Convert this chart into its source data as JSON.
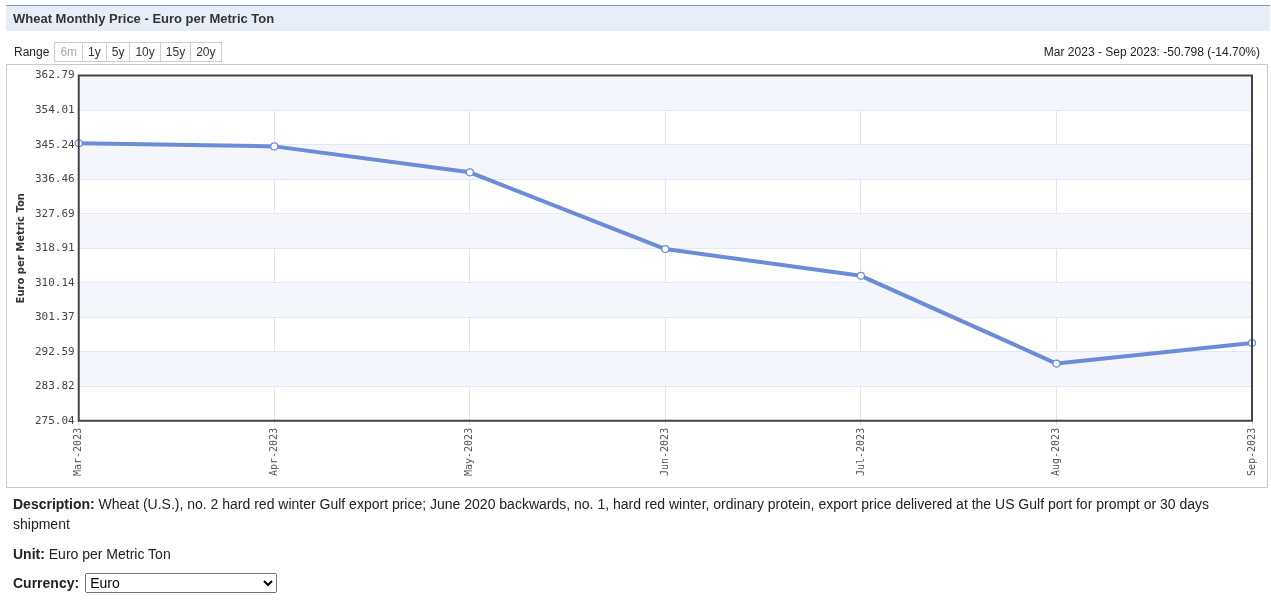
{
  "chart_data": {
    "type": "line",
    "title": "Wheat Monthly Price - Euro per Metric Ton",
    "ylabel": "Euro per Metric Ton",
    "categories": [
      "Mar-2023",
      "Apr-2023",
      "May-2023",
      "Jun-2023",
      "Jul-2023",
      "Aug-2023",
      "Sep-2023"
    ],
    "series": [
      {
        "color": "#6b8cd6",
        "values": [
          345.6,
          344.8,
          338.2,
          318.7,
          311.9,
          289.6,
          294.8
        ]
      }
    ],
    "ylim": [
      275.04,
      362.79
    ],
    "yticks": [
      275.04,
      283.82,
      292.59,
      301.37,
      310.14,
      318.91,
      327.69,
      336.46,
      345.24,
      354.01,
      362.79
    ],
    "grid": true,
    "legend": false,
    "marker": "circle",
    "line_style": "solid",
    "annotations": [
      "Range",
      "6m",
      "1y",
      "5y",
      "10y",
      "15y",
      "20y",
      "Mar 2023 - Sep 2023: -50.798 (-14.70%)",
      "Description: Wheat (U.S.), no. 2 hard red winter Gulf export price; June 2020 backwards, no. 1, hard red winter, ordinary protein, export price delivered at the US Gulf port for prompt or 30 days shipment",
      "Unit: Euro per Metric Ton",
      "Currency: Euro"
    ]
  }
}
